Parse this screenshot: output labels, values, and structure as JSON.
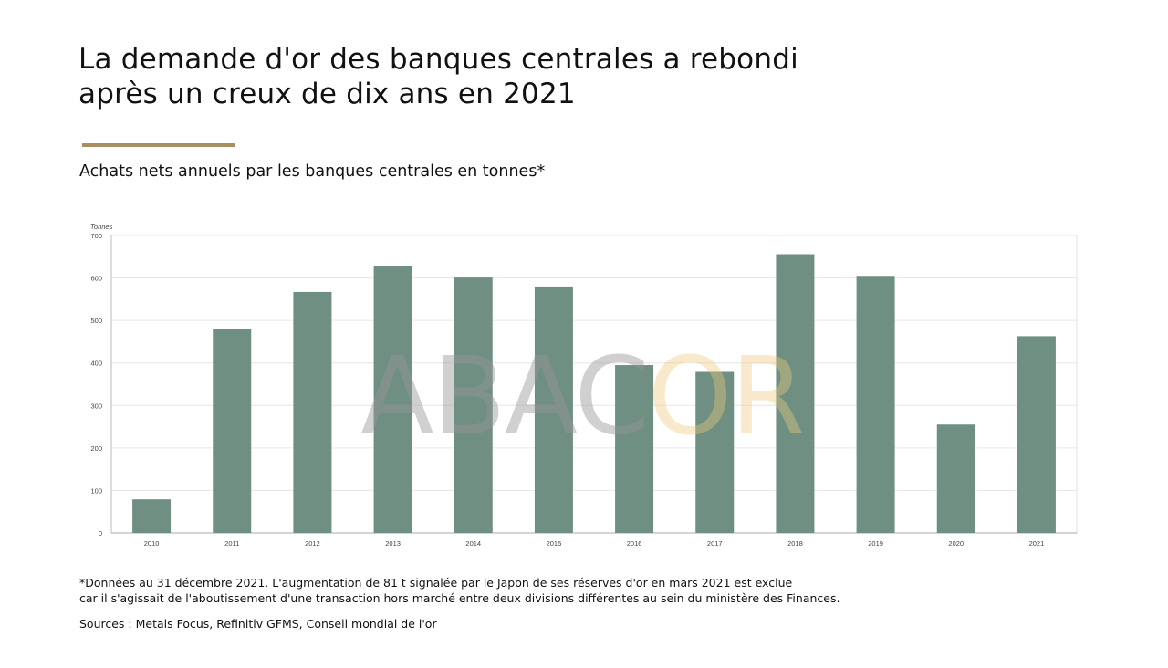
{
  "title_line1": "La demande d'or des banques centrales a rebondi",
  "title_line2": "après un creux de dix ans en 2021",
  "subtitle": "Achats nets annuels par les banques centrales en tonnes*",
  "footnote_line1": "*Données au 31 décembre 2021. L'augmentation de 81 t signalée par le Japon de ses réserves d'or en mars 2021 est exclue",
  "footnote_line2": "car il s'agissait de l'aboutissement d'une transaction hors marché entre deux divisions différentes au sein du ministère des Finances.",
  "sources": "Sources : Metals Focus, Refinitiv GFMS, Conseil mondial de l'or",
  "watermark": {
    "part1": "ABAC",
    "part2": "OR"
  },
  "colors": {
    "bar": "#6e8f81",
    "accent_rule": "#a88f62",
    "grid": "#e6e6e6"
  },
  "chart_data": {
    "type": "bar",
    "ylabel": "Tonnes",
    "categories": [
      "2010",
      "2011",
      "2012",
      "2013",
      "2014",
      "2015",
      "2016",
      "2017",
      "2018",
      "2019",
      "2020",
      "2021"
    ],
    "values": [
      79,
      480,
      567,
      628,
      601,
      580,
      395,
      379,
      656,
      605,
      255,
      463
    ],
    "ylim": [
      0,
      700
    ],
    "yticks": [
      "0",
      "100",
      "200",
      "300",
      "400",
      "500",
      "600",
      "700"
    ],
    "grid": true,
    "legend": "none"
  }
}
